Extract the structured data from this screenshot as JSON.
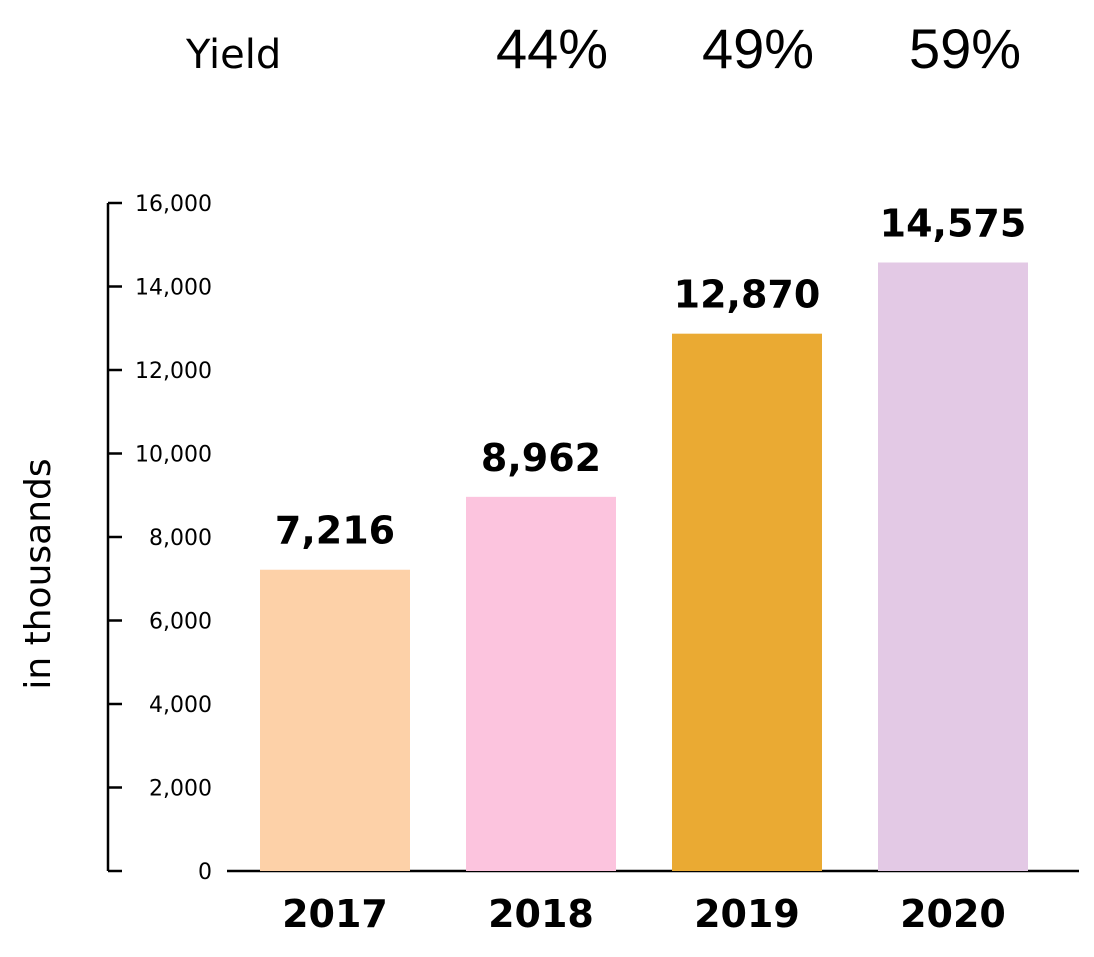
{
  "yield_row": {
    "label": "Yield",
    "values": [
      "44%",
      "49%",
      "59%"
    ]
  },
  "chart_data": {
    "type": "bar",
    "categories": [
      "2017",
      "2018",
      "2019",
      "2020"
    ],
    "values": [
      7216,
      8962,
      12870,
      14575
    ],
    "data_labels": [
      "7,216",
      "8,962",
      "12,870",
      "14,575"
    ],
    "colors": [
      "#FDD1A8",
      "#FCC4DE",
      "#EAAA33",
      "#E3C9E5"
    ],
    "ylabel": "in thousands",
    "xlabel": "",
    "ylim": [
      0,
      16000
    ],
    "yticks": [
      0,
      2000,
      4000,
      6000,
      8000,
      10000,
      12000,
      14000,
      16000
    ],
    "ytick_labels": [
      "0",
      "2,000",
      "4,000",
      "6,000",
      "8,000",
      "10,000",
      "12,000",
      "14,000",
      "16,000"
    ],
    "grid": false,
    "legend": "none"
  }
}
